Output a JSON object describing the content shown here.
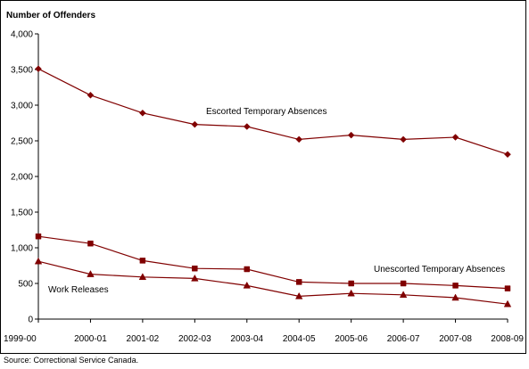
{
  "chart_data": {
    "type": "line",
    "title": "",
    "ylabel": "Number of Offenders",
    "xlabel": "",
    "categories": [
      "1999-00",
      "2000-01",
      "2001-02",
      "2002-03",
      "2003-04",
      "2004-05",
      "2005-06",
      "2006-07",
      "2007-08",
      "2008-09"
    ],
    "ylim": [
      0,
      4000
    ],
    "yticks": [
      0,
      500,
      1000,
      1500,
      2000,
      2500,
      3000,
      3500,
      4000
    ],
    "ytick_labels": [
      "0",
      "500",
      "1,000",
      "1,500",
      "2,000",
      "2,500",
      "3,000",
      "3,500",
      "4,000"
    ],
    "grid": false,
    "legend": "none",
    "series": [
      {
        "name": "Escorted Temporary Absences",
        "marker": "diamond",
        "color": "#800000",
        "values": [
          3510,
          3140,
          2890,
          2730,
          2700,
          2520,
          2580,
          2520,
          2550,
          2310
        ]
      },
      {
        "name": "Unescorted Temporary Absences",
        "marker": "square",
        "color": "#800000",
        "values": [
          1160,
          1060,
          820,
          710,
          700,
          520,
          500,
          500,
          470,
          430
        ]
      },
      {
        "name": "Work Releases",
        "marker": "triangle",
        "color": "#800000",
        "values": [
          810,
          630,
          590,
          570,
          470,
          320,
          360,
          340,
          300,
          210
        ]
      }
    ]
  },
  "source": "Source:  Correctional Service Canada."
}
